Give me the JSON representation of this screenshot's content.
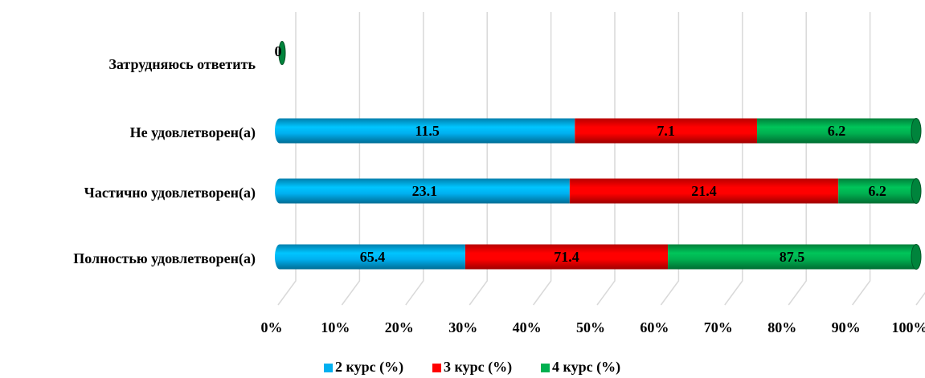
{
  "chart_data": {
    "type": "bar",
    "orientation": "horizontal",
    "stacking": "percent",
    "categories": [
      "Затрудняюсь ответить",
      "Не удовлетворен(а)",
      "Частично удовлетворен(а)",
      "Полностью удовлетворен(а)"
    ],
    "series": [
      {
        "name": "2 курс (%)",
        "color": "#00B0F0",
        "values": [
          0,
          11.5,
          23.1,
          65.4
        ]
      },
      {
        "name": "3 курс (%)",
        "color": "#FF0000",
        "values": [
          0,
          7.1,
          21.4,
          71.4
        ]
      },
      {
        "name": "4 курс (%)",
        "color": "#00B050",
        "values": [
          0,
          6.2,
          6.2,
          87.5
        ]
      }
    ],
    "data_labels": [
      [
        "",
        "11.5",
        "23.1",
        "65.4"
      ],
      [
        "",
        "7.1",
        "21.4",
        "71.4"
      ],
      [
        "0",
        "6.2",
        "6.2",
        "87.5"
      ]
    ],
    "xticks": [
      "0%",
      "10%",
      "20%",
      "30%",
      "40%",
      "50%",
      "60%",
      "70%",
      "80%",
      "90%",
      "100%"
    ],
    "xlim": [
      0,
      100
    ],
    "title": "",
    "xlabel": "",
    "ylabel": "",
    "grid": true,
    "legend_position": "bottom",
    "style": "3d-cylinder"
  }
}
